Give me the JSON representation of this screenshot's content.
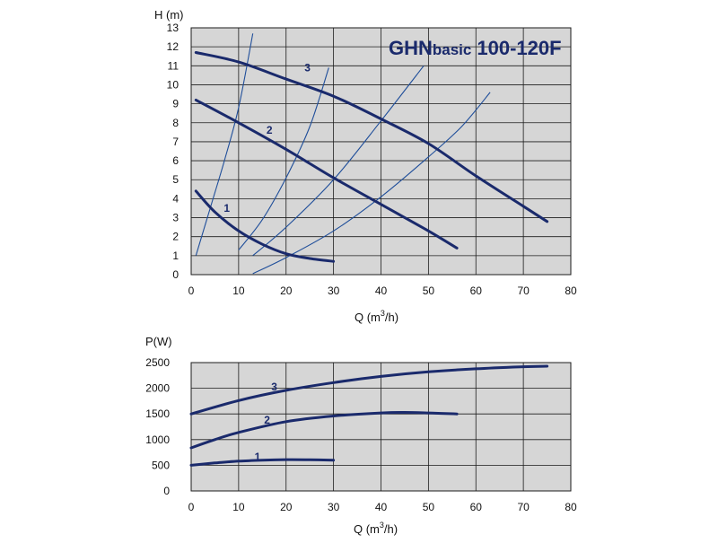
{
  "colors": {
    "curve": "#1a2a6c",
    "thin": "#1f4e9a",
    "plot_bg": "#d6d6d6",
    "grid": "#1c1c1c"
  },
  "chart_data": [
    {
      "type": "line",
      "title_main": "GHN",
      "title_sub": "basic",
      "title_model": "100-120F",
      "xlabel": "Q (m",
      "xlabel_sup": "3",
      "xlabel_end": "/h)",
      "ylabel": "H (m)",
      "xlim": [
        0,
        80
      ],
      "ylim": [
        0,
        13
      ],
      "xticks": [
        "0",
        "10",
        "20",
        "30",
        "40",
        "50",
        "60",
        "70",
        "80"
      ],
      "yticks": [
        "0",
        "1",
        "2",
        "3",
        "4",
        "5",
        "6",
        "7",
        "8",
        "9",
        "10",
        "11",
        "12",
        "13"
      ],
      "grid": true,
      "series": [
        {
          "name": "1",
          "points": [
            [
              1,
              4.4
            ],
            [
              5,
              3.3
            ],
            [
              10,
              2.3
            ],
            [
              15,
              1.6
            ],
            [
              20,
              1.1
            ],
            [
              25,
              0.85
            ],
            [
              30,
              0.7
            ]
          ]
        },
        {
          "name": "2",
          "points": [
            [
              1,
              9.2
            ],
            [
              10,
              8.0
            ],
            [
              20,
              6.6
            ],
            [
              30,
              5.1
            ],
            [
              40,
              3.7
            ],
            [
              50,
              2.3
            ],
            [
              56,
              1.4
            ]
          ]
        },
        {
          "name": "3",
          "points": [
            [
              1,
              11.7
            ],
            [
              10,
              11.2
            ],
            [
              20,
              10.3
            ],
            [
              30,
              9.4
            ],
            [
              40,
              8.2
            ],
            [
              50,
              6.9
            ],
            [
              60,
              5.2
            ],
            [
              70,
              3.6
            ],
            [
              75,
              2.8
            ]
          ]
        }
      ],
      "system_curves": [
        {
          "points": [
            [
              1,
              1.0
            ],
            [
              4,
              3.5
            ],
            [
              7,
              6.0
            ],
            [
              10,
              8.8
            ],
            [
              13,
              12.7
            ]
          ]
        },
        {
          "points": [
            [
              10,
              1.3
            ],
            [
              15,
              2.9
            ],
            [
              20,
              5.1
            ],
            [
              25,
              7.8
            ],
            [
              29,
              10.9
            ]
          ]
        },
        {
          "points": [
            [
              13,
              1.0
            ],
            [
              20,
              2.5
            ],
            [
              30,
              5.0
            ],
            [
              40,
              8.1
            ],
            [
              49,
              11.0
            ]
          ]
        },
        {
          "points": [
            [
              13,
              0.05
            ],
            [
              20,
              0.9
            ],
            [
              30,
              2.3
            ],
            [
              40,
              4.1
            ],
            [
              50,
              6.2
            ],
            [
              57,
              7.8
            ],
            [
              63,
              9.6
            ]
          ]
        }
      ],
      "curve_labels": [
        {
          "text": "1",
          "x": 7.5,
          "y": 3.5
        },
        {
          "text": "2",
          "x": 16.5,
          "y": 7.6
        },
        {
          "text": "3",
          "x": 24.5,
          "y": 10.9
        }
      ]
    },
    {
      "type": "line",
      "xlabel": "Q (m",
      "xlabel_sup": "3",
      "xlabel_end": "/h)",
      "ylabel": "P(W)",
      "xlim": [
        0,
        80
      ],
      "ylim": [
        0,
        2500
      ],
      "xticks": [
        "0",
        "10",
        "20",
        "30",
        "40",
        "50",
        "60",
        "70",
        "80"
      ],
      "yticks": [
        "0",
        "500",
        "1000",
        "1500",
        "2000",
        "2500"
      ],
      "grid": true,
      "series": [
        {
          "name": "1",
          "points": [
            [
              0,
              500
            ],
            [
              5,
              545
            ],
            [
              10,
              580
            ],
            [
              15,
              600
            ],
            [
              20,
              610
            ],
            [
              25,
              608
            ],
            [
              30,
              600
            ]
          ]
        },
        {
          "name": "2",
          "points": [
            [
              0,
              840
            ],
            [
              5,
              1000
            ],
            [
              10,
              1140
            ],
            [
              20,
              1350
            ],
            [
              30,
              1460
            ],
            [
              40,
              1520
            ],
            [
              45,
              1530
            ],
            [
              50,
              1520
            ],
            [
              56,
              1500
            ]
          ]
        },
        {
          "name": "3",
          "points": [
            [
              0,
              1500
            ],
            [
              10,
              1760
            ],
            [
              20,
              1960
            ],
            [
              30,
              2110
            ],
            [
              40,
              2230
            ],
            [
              50,
              2320
            ],
            [
              60,
              2380
            ],
            [
              70,
              2420
            ],
            [
              75,
              2430
            ]
          ]
        }
      ],
      "curve_labels": [
        {
          "text": "1",
          "x": 14,
          "y": 660
        },
        {
          "text": "2",
          "x": 16,
          "y": 1380
        },
        {
          "text": "3",
          "x": 17.5,
          "y": 2030
        }
      ]
    }
  ]
}
